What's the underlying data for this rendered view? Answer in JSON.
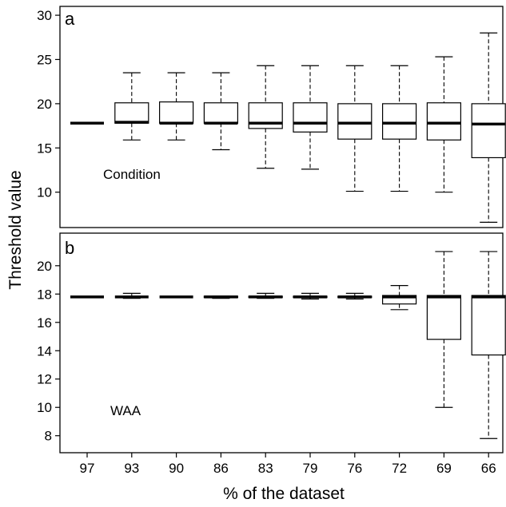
{
  "chart_data": {
    "type": "boxplot",
    "categories": [
      "97",
      "93",
      "90",
      "86",
      "83",
      "79",
      "76",
      "72",
      "69",
      "66"
    ],
    "xlabel": "% of the dataset",
    "ylabel": "Threshold value",
    "panels": [
      {
        "label": "a",
        "annotation": "Condition",
        "ylim": [
          6,
          31
        ],
        "yticks": [
          10,
          15,
          20,
          25,
          30
        ],
        "boxes": [
          {
            "category": "97",
            "min": 17.8,
            "q1": 17.8,
            "median": 17.8,
            "q3": 17.8,
            "max": 17.8
          },
          {
            "category": "93",
            "min": 15.9,
            "q1": 17.8,
            "median": 17.9,
            "q3": 20.1,
            "max": 23.5
          },
          {
            "category": "90",
            "min": 15.9,
            "q1": 17.8,
            "median": 17.8,
            "q3": 20.2,
            "max": 23.5
          },
          {
            "category": "86",
            "min": 14.8,
            "q1": 17.8,
            "median": 17.8,
            "q3": 20.1,
            "max": 23.5
          },
          {
            "category": "83",
            "min": 12.7,
            "q1": 17.2,
            "median": 17.8,
            "q3": 20.1,
            "max": 24.3
          },
          {
            "category": "79",
            "min": 12.6,
            "q1": 16.8,
            "median": 17.8,
            "q3": 20.1,
            "max": 24.3
          },
          {
            "category": "76",
            "min": 10.1,
            "q1": 16.0,
            "median": 17.8,
            "q3": 20.0,
            "max": 24.3
          },
          {
            "category": "72",
            "min": 10.1,
            "q1": 16.0,
            "median": 17.8,
            "q3": 20.0,
            "max": 24.3
          },
          {
            "category": "69",
            "min": 10.0,
            "q1": 15.9,
            "median": 17.8,
            "q3": 20.1,
            "max": 25.3
          },
          {
            "category": "66",
            "min": 6.6,
            "q1": 13.9,
            "median": 17.7,
            "q3": 20.0,
            "max": 28.0
          }
        ]
      },
      {
        "label": "b",
        "annotation": "WAA",
        "ylim": [
          6.8,
          22.3
        ],
        "yticks": [
          8,
          10,
          12,
          14,
          16,
          18,
          20
        ],
        "boxes": [
          {
            "category": "97",
            "min": 17.8,
            "q1": 17.8,
            "median": 17.8,
            "q3": 17.8,
            "max": 17.8
          },
          {
            "category": "93",
            "min": 17.7,
            "q1": 17.8,
            "median": 17.8,
            "q3": 17.8,
            "max": 18.05
          },
          {
            "category": "90",
            "min": 17.8,
            "q1": 17.8,
            "median": 17.8,
            "q3": 17.8,
            "max": 17.8
          },
          {
            "category": "86",
            "min": 17.7,
            "q1": 17.75,
            "median": 17.8,
            "q3": 17.85,
            "max": 17.85
          },
          {
            "category": "83",
            "min": 17.7,
            "q1": 17.75,
            "median": 17.8,
            "q3": 17.85,
            "max": 18.05
          },
          {
            "category": "79",
            "min": 17.65,
            "q1": 17.75,
            "median": 17.8,
            "q3": 17.85,
            "max": 18.05
          },
          {
            "category": "76",
            "min": 17.65,
            "q1": 17.75,
            "median": 17.8,
            "q3": 17.85,
            "max": 18.05
          },
          {
            "category": "72",
            "min": 16.9,
            "q1": 17.3,
            "median": 17.8,
            "q3": 17.9,
            "max": 18.6
          },
          {
            "category": "69",
            "min": 10.0,
            "q1": 14.8,
            "median": 17.8,
            "q3": 17.9,
            "max": 21.0
          },
          {
            "category": "66",
            "min": 7.8,
            "q1": 13.7,
            "median": 17.8,
            "q3": 17.9,
            "max": 21.0
          }
        ]
      }
    ]
  }
}
